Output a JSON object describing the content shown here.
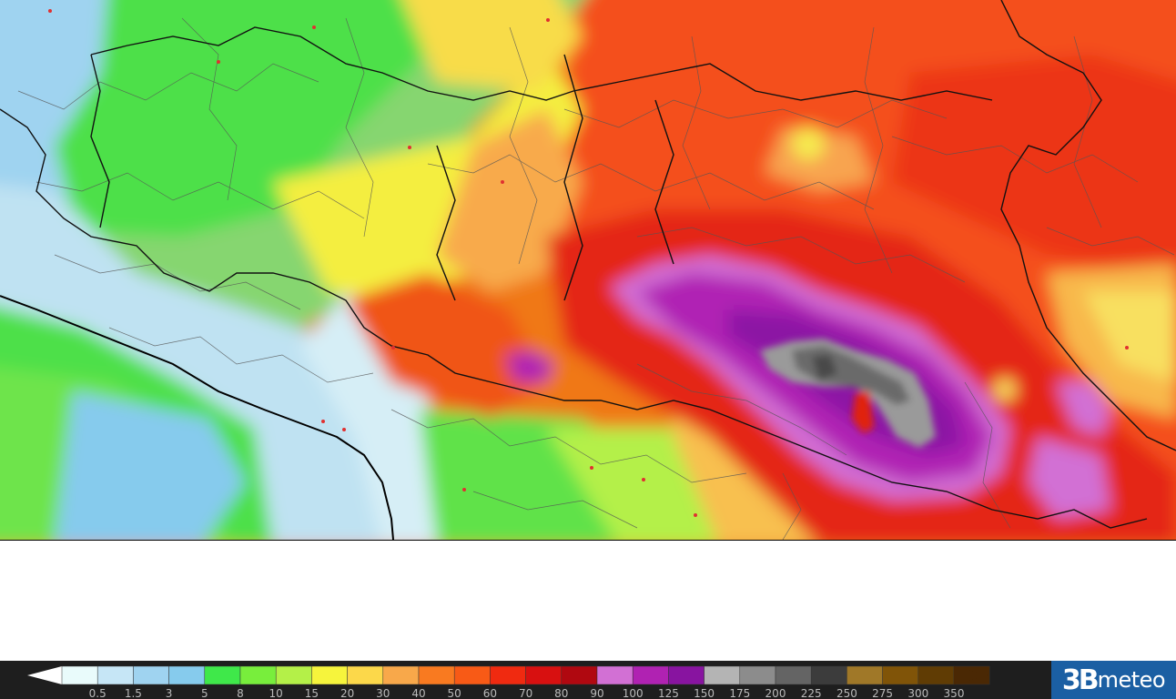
{
  "legend": {
    "colors": [
      "#e9fbfb",
      "#c6e6f6",
      "#9fd3f0",
      "#86cbed",
      "#3fe84a",
      "#78ee3c",
      "#b4f048",
      "#f6f43c",
      "#fcd84a",
      "#f8a84a",
      "#f97a20",
      "#f85a16",
      "#f02a10",
      "#d81010",
      "#b00810",
      "#d270d4",
      "#b022b2",
      "#8814a0",
      "#b4b4b4",
      "#8c8c8c",
      "#646464",
      "#3c3c3c",
      "#a07828",
      "#805408",
      "#603c04",
      "#4a2804"
    ],
    "thresholds": [
      "0.5",
      "1.5",
      "3",
      "5",
      "8",
      "10",
      "15",
      "20",
      "30",
      "40",
      "50",
      "60",
      "70",
      "80",
      "90",
      "100",
      "125",
      "150",
      "175",
      "200",
      "225",
      "250",
      "275",
      "300",
      "350"
    ],
    "left_arrow_color": "#ffffff",
    "right_arrow_color": "#4a2804"
  },
  "logo": {
    "mark": "3B",
    "text": "meteo"
  }
}
